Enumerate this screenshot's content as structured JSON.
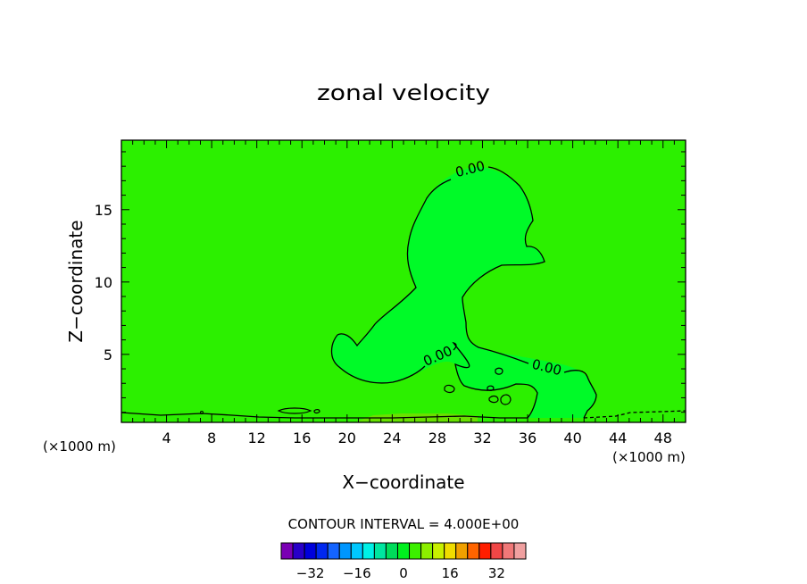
{
  "chart_data": {
    "type": "contour",
    "title": "zonal velocity",
    "xlabel": "X−coordinate",
    "ylabel": "Z−coordinate",
    "x_unit_left": "(×1000 m)",
    "x_unit_right": "(×1000 m)",
    "xlim": [
      0,
      50
    ],
    "ylim": [
      0.3,
      19.8
    ],
    "x_ticks": [
      4,
      8,
      12,
      16,
      20,
      24,
      28,
      32,
      36,
      40,
      44,
      48
    ],
    "y_ticks": [
      5,
      10,
      15
    ],
    "contour_labels": [
      {
        "text": "0.00",
        "x": 31,
        "y": 17.5
      },
      {
        "text": "0.00",
        "x": 28.2,
        "y": 4.6
      },
      {
        "text": "0.00",
        "x": 37.6,
        "y": 3.8
      }
    ],
    "contour_interval_text": "CONTOUR INTERVAL = 4.000E+00",
    "colorbar": {
      "colors": [
        "#7a00b4",
        "#2800c8",
        "#0000dc",
        "#0028f0",
        "#1464ff",
        "#0096ff",
        "#00c8ff",
        "#00f0e6",
        "#00e6a0",
        "#00dc5a",
        "#00f01e",
        "#3cf000",
        "#8cf000",
        "#c8f000",
        "#f0dc00",
        "#f0a000",
        "#ff6400",
        "#ff1e00",
        "#f04646",
        "#f07878",
        "#f0a0a0"
      ],
      "tick_labels": [
        "−32",
        "−16",
        "0",
        "16",
        "32"
      ],
      "tick_values": [
        -32,
        -16,
        0,
        16,
        32
      ]
    },
    "fill_colors": {
      "background": "#2cf000",
      "region": "#00fa28",
      "surface_band": "#6ae000"
    }
  }
}
